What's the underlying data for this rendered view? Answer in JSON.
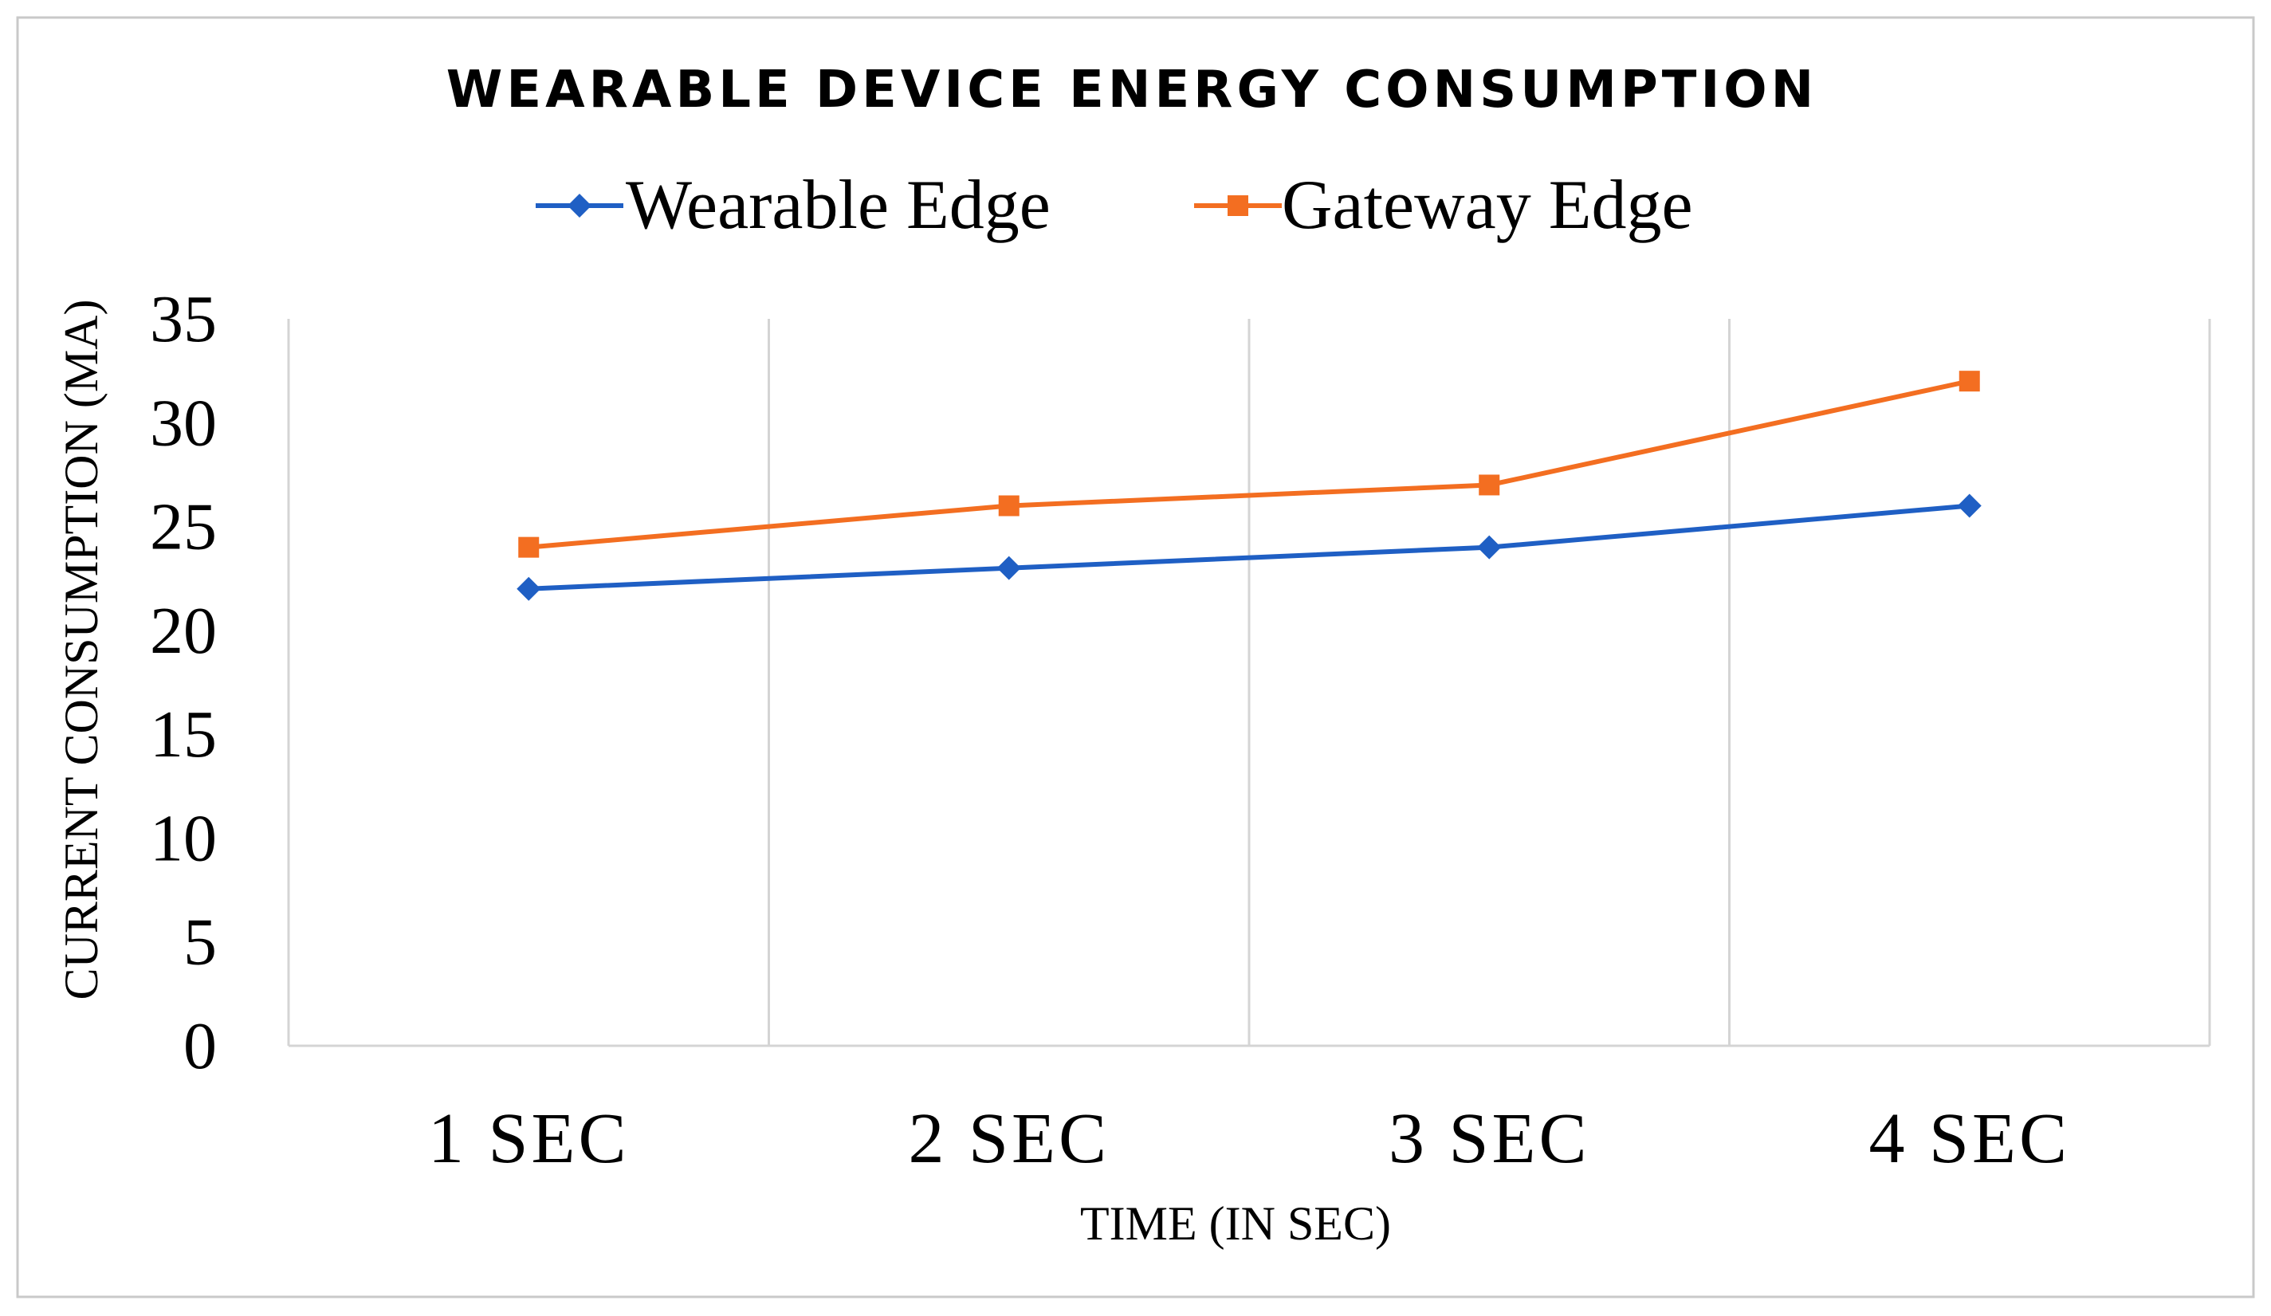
{
  "chart_data": {
    "type": "line",
    "title": "WEARABLE DEVICE ENERGY CONSUMPTION",
    "xlabel": "TIME (IN SEC)",
    "ylabel": "CURRENT CONSUMPTION (MA)",
    "categories": [
      "1 SEC",
      "2 SEC",
      "3 SEC",
      "4 SEC"
    ],
    "ylim": [
      0,
      35
    ],
    "yticks": [
      0,
      5,
      10,
      15,
      20,
      25,
      30,
      35
    ],
    "grid": "vertical",
    "legend": "top",
    "series": [
      {
        "name": "Wearable Edge",
        "values": [
          22,
          23,
          24,
          26
        ],
        "color": "#1F5FC4",
        "marker": "diamond"
      },
      {
        "name": "Gateway Edge",
        "values": [
          24,
          26,
          27,
          32
        ],
        "color": "#F36E21",
        "marker": "square"
      }
    ]
  }
}
